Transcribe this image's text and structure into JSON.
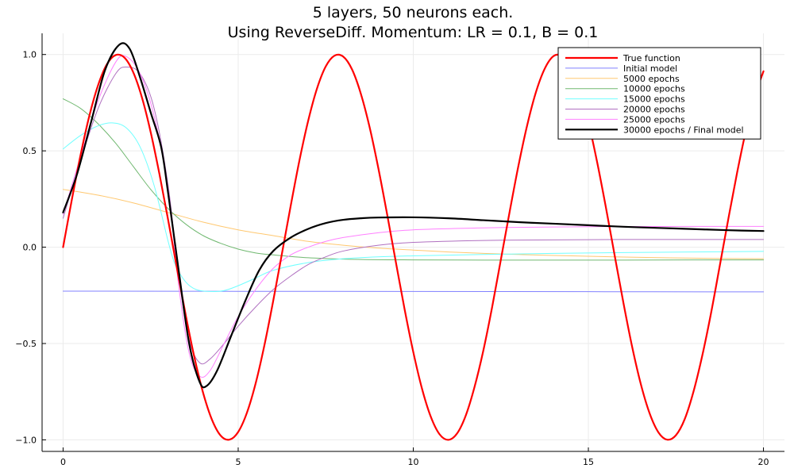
{
  "chart_data": {
    "type": "line",
    "title_line1": "5 layers, 50 neurons each.",
    "title_line2": "Using ReverseDiff. Momentum: LR = 0.1, B = 0.1",
    "xlabel": "",
    "ylabel": "",
    "xlim": [
      -0.6,
      20.6
    ],
    "ylim": [
      -1.06,
      1.11
    ],
    "xticks": [
      0,
      5,
      10,
      15,
      20
    ],
    "xtick_labels": [
      "0",
      "5",
      "10",
      "15",
      "20"
    ],
    "yticks": [
      -1.0,
      -0.5,
      0.0,
      0.5,
      1.0
    ],
    "ytick_labels": [
      "−1.0",
      "−0.5",
      "0.0",
      "0.5",
      "1.0"
    ],
    "grid": true,
    "legend_position": "top-right",
    "series": [
      {
        "name": "True function",
        "color": "#ff0000",
        "width": 2.2,
        "x": [
          0,
          0.25,
          0.5,
          0.75,
          1,
          1.25,
          1.5,
          1.75,
          2,
          2.25,
          2.5,
          2.75,
          3,
          3.25,
          3.5,
          3.75,
          4,
          4.25,
          4.5,
          4.75,
          5,
          5.25,
          5.5,
          5.75,
          6,
          6.25,
          6.5,
          6.75,
          7,
          7.25,
          7.5,
          7.75,
          8,
          8.25,
          8.5,
          8.75,
          9,
          9.25,
          9.5,
          9.75,
          10,
          10.25,
          10.5,
          10.75,
          11,
          11.25,
          11.5,
          11.75,
          12,
          12.25,
          12.5,
          12.75,
          13,
          13.25,
          13.5,
          13.75,
          14,
          14.25,
          14.5,
          14.75,
          15,
          15.25,
          15.5,
          15.75,
          16,
          16.25,
          16.5,
          16.75,
          17,
          17.25,
          17.5,
          17.75,
          18,
          18.25,
          18.5,
          18.75,
          19,
          19.25,
          19.5,
          19.75,
          20
        ],
        "y": [
          0,
          0.247,
          0.479,
          0.682,
          0.841,
          0.949,
          0.997,
          0.984,
          0.909,
          0.778,
          0.598,
          0.381,
          0.141,
          -0.108,
          -0.351,
          -0.572,
          -0.757,
          -0.895,
          -0.978,
          -0.999,
          -0.959,
          -0.859,
          -0.706,
          -0.508,
          -0.279,
          -0.033,
          0.215,
          0.451,
          0.657,
          0.823,
          0.938,
          0.994,
          0.989,
          0.923,
          0.798,
          0.625,
          0.412,
          0.174,
          -0.075,
          -0.32,
          -0.544,
          -0.735,
          -0.88,
          -0.971,
          -1.0,
          -0.967,
          -0.873,
          -0.725,
          -0.537,
          -0.313,
          -0.066,
          0.182,
          0.42,
          0.631,
          0.803,
          0.925,
          0.991,
          0.992,
          0.935,
          0.819,
          0.65,
          0.442,
          0.207,
          -0.042,
          -0.288,
          -0.517,
          -0.712,
          -0.863,
          -0.961,
          -0.999,
          -0.976,
          -0.893,
          -0.751,
          -0.565,
          -0.345,
          -0.099,
          0.15,
          0.389,
          0.605,
          0.782,
          0.913
        ]
      },
      {
        "name": "Initial model",
        "color": "#8080ff",
        "width": 1,
        "x": [
          0,
          5,
          10,
          15,
          20
        ],
        "y": [
          -0.228,
          -0.229,
          -0.23,
          -0.231,
          -0.232
        ]
      },
      {
        "name": "5000 epochs",
        "color": "#ffc870",
        "width": 1,
        "x": [
          0,
          1,
          2,
          3,
          4,
          5,
          6,
          7,
          8,
          9,
          10,
          11,
          12,
          13,
          14,
          15,
          16,
          17,
          18,
          19,
          20
        ],
        "y": [
          0.3,
          0.27,
          0.23,
          0.18,
          0.13,
          0.09,
          0.06,
          0.03,
          0.01,
          -0.005,
          -0.015,
          -0.025,
          -0.032,
          -0.038,
          -0.043,
          -0.047,
          -0.051,
          -0.054,
          -0.057,
          -0.059,
          -0.06
        ]
      },
      {
        "name": "10000 epochs",
        "color": "#70b870",
        "width": 1,
        "x": [
          0,
          0.5,
          1,
          1.5,
          2,
          2.5,
          3,
          3.5,
          4,
          4.5,
          5,
          5.5,
          6,
          7,
          8,
          9,
          10,
          12,
          14,
          16,
          18,
          20
        ],
        "y": [
          0.77,
          0.72,
          0.64,
          0.54,
          0.42,
          0.3,
          0.2,
          0.12,
          0.06,
          0.02,
          -0.01,
          -0.03,
          -0.04,
          -0.055,
          -0.062,
          -0.065,
          -0.066,
          -0.067,
          -0.067,
          -0.067,
          -0.066,
          -0.066
        ]
      },
      {
        "name": "15000 epochs",
        "color": "#70ffff",
        "width": 1,
        "x": [
          0,
          0.5,
          1,
          1.4,
          1.8,
          2.2,
          2.6,
          3,
          3.2,
          3.5,
          3.8,
          4.2,
          4.6,
          5,
          5.5,
          6,
          7,
          8,
          9,
          10,
          12,
          14,
          16,
          18,
          20
        ],
        "y": [
          0.51,
          0.58,
          0.63,
          0.645,
          0.62,
          0.52,
          0.32,
          0.03,
          -0.09,
          -0.18,
          -0.22,
          -0.23,
          -0.225,
          -0.2,
          -0.16,
          -0.12,
          -0.08,
          -0.06,
          -0.05,
          -0.045,
          -0.038,
          -0.032,
          -0.028,
          -0.025,
          -0.022
        ]
      },
      {
        "name": "20000 epochs",
        "color": "#b070c0",
        "width": 1,
        "x": [
          0,
          0.5,
          1,
          1.5,
          1.8,
          2.2,
          2.6,
          3,
          3.3,
          3.6,
          3.9,
          4.2,
          4.6,
          5,
          5.5,
          6,
          6.5,
          7,
          7.5,
          8,
          9,
          10,
          12,
          14,
          16,
          18,
          20
        ],
        "y": [
          0.15,
          0.45,
          0.72,
          0.9,
          0.935,
          0.9,
          0.72,
          0.32,
          -0.15,
          -0.48,
          -0.6,
          -0.58,
          -0.5,
          -0.41,
          -0.31,
          -0.22,
          -0.15,
          -0.09,
          -0.05,
          -0.02,
          0.01,
          0.025,
          0.035,
          0.038,
          0.04,
          0.04,
          0.04
        ]
      },
      {
        "name": "25000 epochs",
        "color": "#ff80ff",
        "width": 1,
        "x": [
          0,
          0.5,
          1,
          1.5,
          1.8,
          2.2,
          2.6,
          3,
          3.3,
          3.6,
          3.9,
          4.2,
          4.6,
          5,
          5.5,
          6,
          6.5,
          7,
          7.5,
          8,
          9,
          10,
          12,
          14,
          16,
          18,
          20
        ],
        "y": [
          0.17,
          0.47,
          0.76,
          0.96,
          0.99,
          0.9,
          0.68,
          0.3,
          -0.2,
          -0.55,
          -0.67,
          -0.64,
          -0.5,
          -0.36,
          -0.22,
          -0.11,
          -0.04,
          0.0,
          0.03,
          0.05,
          0.075,
          0.09,
          0.1,
          0.105,
          0.107,
          0.108,
          0.108
        ]
      },
      {
        "name": "30000 epochs / Final model",
        "color": "#000000",
        "width": 2.2,
        "x": [
          0,
          0.4,
          0.8,
          1.2,
          1.6,
          1.9,
          2.2,
          2.5,
          2.8,
          3,
          3.3,
          3.6,
          3.9,
          4.1,
          4.4,
          4.8,
          5.2,
          5.6,
          6,
          6.5,
          7,
          7.5,
          8,
          8.5,
          9,
          10,
          11,
          12,
          13,
          14,
          15,
          16,
          17,
          18,
          19,
          20
        ],
        "y": [
          0.18,
          0.38,
          0.65,
          0.92,
          1.05,
          1.03,
          0.88,
          0.7,
          0.52,
          0.28,
          -0.12,
          -0.5,
          -0.7,
          -0.72,
          -0.64,
          -0.46,
          -0.28,
          -0.12,
          -0.02,
          0.05,
          0.095,
          0.125,
          0.142,
          0.15,
          0.154,
          0.155,
          0.15,
          0.14,
          0.13,
          0.122,
          0.114,
          0.106,
          0.1,
          0.094,
          0.088,
          0.084
        ]
      }
    ]
  }
}
